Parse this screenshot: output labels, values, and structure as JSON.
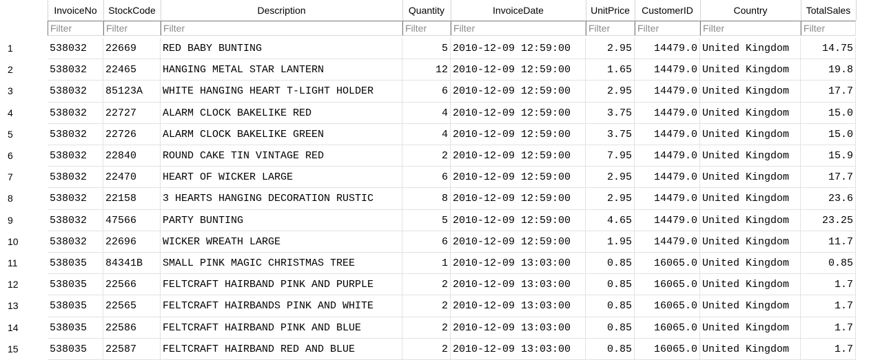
{
  "columns": [
    {
      "label": "InvoiceNo",
      "filter_placeholder": "Filter"
    },
    {
      "label": "StockCode",
      "filter_placeholder": "Filter"
    },
    {
      "label": "Description",
      "filter_placeholder": "Filter"
    },
    {
      "label": "Quantity",
      "filter_placeholder": "Filter"
    },
    {
      "label": "InvoiceDate",
      "filter_placeholder": "Filter"
    },
    {
      "label": "UnitPrice",
      "filter_placeholder": "Filter"
    },
    {
      "label": "CustomerID",
      "filter_placeholder": "Filter"
    },
    {
      "label": "Country",
      "filter_placeholder": "Filter"
    },
    {
      "label": "TotalSales",
      "filter_placeholder": "Filter"
    }
  ],
  "rows": [
    {
      "num": "1",
      "cells": [
        "538032",
        "22669",
        "RED BABY BUNTING",
        "5",
        "2010-12-09 12:59:00",
        "2.95",
        "14479.0",
        "United Kingdom",
        "14.75"
      ]
    },
    {
      "num": "2",
      "cells": [
        "538032",
        "22465",
        "HANGING METAL STAR LANTERN",
        "12",
        "2010-12-09 12:59:00",
        "1.65",
        "14479.0",
        "United Kingdom",
        "19.8"
      ]
    },
    {
      "num": "3",
      "cells": [
        "538032",
        "85123A",
        "WHITE HANGING HEART T-LIGHT HOLDER",
        "6",
        "2010-12-09 12:59:00",
        "2.95",
        "14479.0",
        "United Kingdom",
        "17.7"
      ]
    },
    {
      "num": "4",
      "cells": [
        "538032",
        "22727",
        "ALARM CLOCK BAKELIKE RED",
        "4",
        "2010-12-09 12:59:00",
        "3.75",
        "14479.0",
        "United Kingdom",
        "15.0"
      ]
    },
    {
      "num": "5",
      "cells": [
        "538032",
        "22726",
        "ALARM CLOCK BAKELIKE GREEN",
        "4",
        "2010-12-09 12:59:00",
        "3.75",
        "14479.0",
        "United Kingdom",
        "15.0"
      ]
    },
    {
      "num": "6",
      "cells": [
        "538032",
        "22840",
        "ROUND CAKE TIN VINTAGE RED",
        "2",
        "2010-12-09 12:59:00",
        "7.95",
        "14479.0",
        "United Kingdom",
        "15.9"
      ]
    },
    {
      "num": "7",
      "cells": [
        "538032",
        "22470",
        "HEART OF WICKER LARGE",
        "6",
        "2010-12-09 12:59:00",
        "2.95",
        "14479.0",
        "United Kingdom",
        "17.7"
      ]
    },
    {
      "num": "8",
      "cells": [
        "538032",
        "22158",
        "3 HEARTS HANGING DECORATION RUSTIC",
        "8",
        "2010-12-09 12:59:00",
        "2.95",
        "14479.0",
        "United Kingdom",
        "23.6"
      ]
    },
    {
      "num": "9",
      "cells": [
        "538032",
        "47566",
        "PARTY BUNTING",
        "5",
        "2010-12-09 12:59:00",
        "4.65",
        "14479.0",
        "United Kingdom",
        "23.25"
      ]
    },
    {
      "num": "10",
      "cells": [
        "538032",
        "22696",
        "WICKER WREATH LARGE",
        "6",
        "2010-12-09 12:59:00",
        "1.95",
        "14479.0",
        "United Kingdom",
        "11.7"
      ]
    },
    {
      "num": "11",
      "cells": [
        "538035",
        "84341B",
        "SMALL PINK MAGIC CHRISTMAS TREE",
        "1",
        "2010-12-09 13:03:00",
        "0.85",
        "16065.0",
        "United Kingdom",
        "0.85"
      ]
    },
    {
      "num": "12",
      "cells": [
        "538035",
        "22566",
        "FELTCRAFT HAIRBAND PINK AND PURPLE",
        "2",
        "2010-12-09 13:03:00",
        "0.85",
        "16065.0",
        "United Kingdom",
        "1.7"
      ]
    },
    {
      "num": "13",
      "cells": [
        "538035",
        "22565",
        "FELTCRAFT HAIRBANDS PINK AND WHITE",
        "2",
        "2010-12-09 13:03:00",
        "0.85",
        "16065.0",
        "United Kingdom",
        "1.7"
      ]
    },
    {
      "num": "14",
      "cells": [
        "538035",
        "22586",
        "FELTCRAFT HAIRBAND PINK AND BLUE",
        "2",
        "2010-12-09 13:03:00",
        "0.85",
        "16065.0",
        "United Kingdom",
        "1.7"
      ]
    },
    {
      "num": "15",
      "cells": [
        "538035",
        "22587",
        "FELTCRAFT HAIRBAND RED AND BLUE",
        "2",
        "2010-12-09 13:03:00",
        "0.85",
        "16065.0",
        "United Kingdom",
        "1.7"
      ]
    }
  ]
}
